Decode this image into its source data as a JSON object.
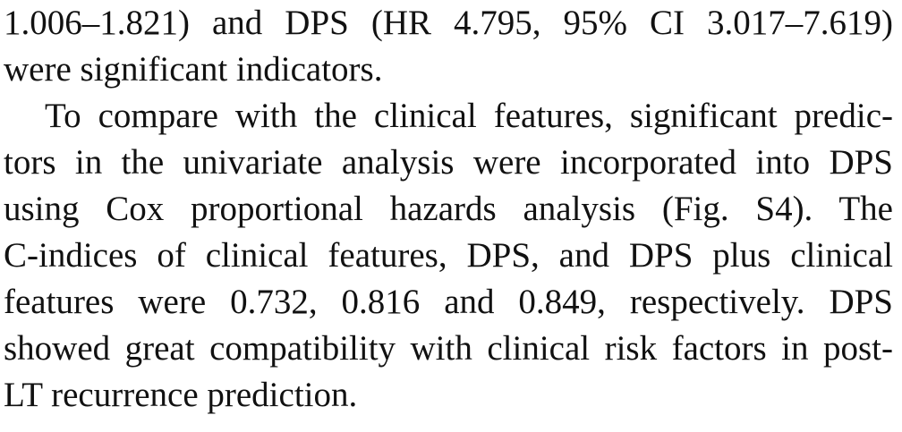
{
  "paragraphs": [
    {
      "lines": [
        "1.006–1.821) and DPS (HR 4.795, 95% CI 3.017–7.619)",
        "were significant indicators."
      ]
    },
    {
      "lines": [
        "To compare with the clinical features, significant predic-",
        "tors in the univariate analysis were incorporated into DPS",
        "using Cox proportional hazards analysis (Fig. S4). The",
        "C-indices of clinical features, DPS, and DPS plus clinical",
        "features were 0.732, 0.816 and 0.849, respectively. DPS",
        "showed great compatibility with clinical risk factors in post-",
        "LT recurrence prediction."
      ]
    }
  ]
}
